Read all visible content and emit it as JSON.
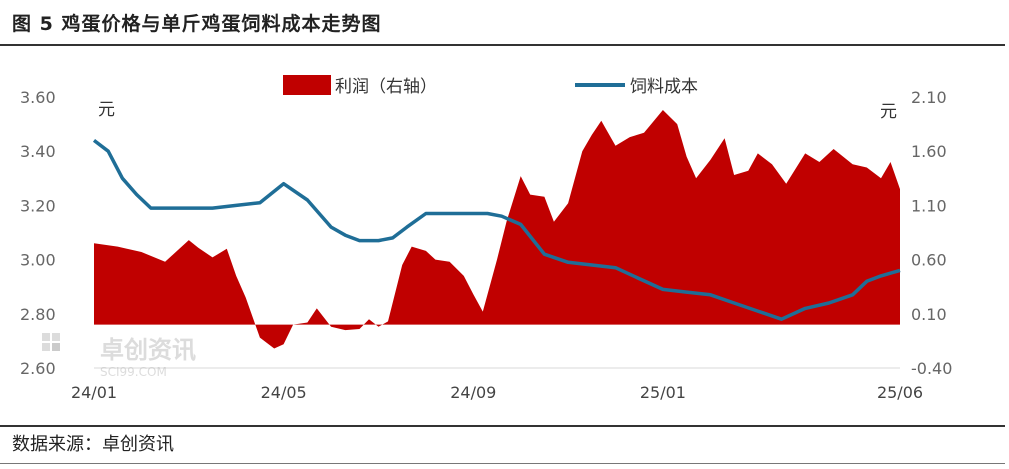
{
  "header": {
    "title": "图 5 鸡蛋价格与单斤鸡蛋饲料成本走势图"
  },
  "footer": {
    "source": "数据来源：卓创资讯"
  },
  "watermark": {
    "brand": "卓创资讯",
    "site": "SCI99.COM"
  },
  "chart_data": {
    "type": "line+area",
    "title": "图 5 鸡蛋价格与单斤鸡蛋饲料成本走势图",
    "left_axis": {
      "unit": "元",
      "ylim": [
        2.6,
        3.6
      ],
      "ticks": [
        "3.60",
        "3.40",
        "3.20",
        "3.00",
        "2.80",
        "2.60"
      ]
    },
    "right_axis": {
      "unit": "元",
      "ylim": [
        -0.4,
        2.1
      ],
      "ticks": [
        "2.10",
        "1.60",
        "1.10",
        "0.60",
        "0.10",
        "-0.40"
      ]
    },
    "x_ticks": [
      "24/01",
      "24/05",
      "24/09",
      "25/01",
      "25/06"
    ],
    "legend": {
      "position": "top-center",
      "entries": [
        {
          "name": "利润（右轴）",
          "color": "#c00000",
          "kind": "area"
        },
        {
          "name": "饲料成本",
          "color": "#1f6e97",
          "kind": "line"
        }
      ]
    },
    "series": [
      {
        "name": "利润（右轴）",
        "axis": "right",
        "color": "#c00000",
        "x": [
          0,
          0.5,
          1,
          1.5,
          2,
          2.2,
          2.5,
          2.8,
          3,
          3.2,
          3.5,
          3.8,
          4,
          4.2,
          4.5,
          4.7,
          5,
          5.3,
          5.6,
          5.8,
          6,
          6.2,
          6.5,
          6.7,
          7,
          7.2,
          7.5,
          7.8,
          8,
          8.2,
          8.5,
          8.7,
          9,
          9.2,
          9.5,
          9.7,
          10,
          10.3,
          10.5,
          10.7,
          11,
          11.3,
          11.6,
          12,
          12.3,
          12.5,
          12.7,
          13,
          13.3,
          13.5,
          13.8,
          14,
          14.3,
          14.6,
          15,
          15.3,
          15.6,
          16,
          16.3,
          16.6,
          16.8,
          17
        ],
        "values": [
          0.75,
          0.72,
          0.67,
          0.58,
          0.78,
          0.71,
          0.62,
          0.7,
          0.45,
          0.25,
          -0.12,
          -0.22,
          -0.18,
          0.0,
          0.02,
          0.15,
          -0.02,
          -0.05,
          -0.04,
          0.05,
          -0.02,
          0.03,
          0.55,
          0.72,
          0.68,
          0.6,
          0.58,
          0.45,
          0.28,
          0.12,
          0.6,
          0.95,
          1.37,
          1.2,
          1.18,
          0.95,
          1.12,
          1.6,
          1.75,
          1.88,
          1.65,
          1.73,
          1.77,
          1.98,
          1.85,
          1.55,
          1.35,
          1.52,
          1.72,
          1.38,
          1.42,
          1.58,
          1.48,
          1.3,
          1.58,
          1.5,
          1.62,
          1.48,
          1.45,
          1.35,
          1.5,
          1.25
        ]
      },
      {
        "name": "饲料成本",
        "axis": "left",
        "color": "#1f6e97",
        "x": [
          0,
          0.3,
          0.6,
          0.9,
          1.2,
          1.5,
          2,
          2.5,
          3,
          3.5,
          4,
          4.5,
          5,
          5.3,
          5.6,
          6,
          6.3,
          6.6,
          7,
          7.3,
          7.6,
          8,
          8.3,
          8.6,
          9,
          9.5,
          10,
          10.5,
          11,
          11.5,
          12,
          12.5,
          13,
          13.5,
          14,
          14.5,
          15,
          15.5,
          16,
          16.3,
          16.6,
          17
        ],
        "values": [
          3.44,
          3.4,
          3.3,
          3.24,
          3.19,
          3.19,
          3.19,
          3.19,
          3.2,
          3.21,
          3.28,
          3.22,
          3.12,
          3.09,
          3.07,
          3.07,
          3.08,
          3.12,
          3.17,
          3.17,
          3.17,
          3.17,
          3.17,
          3.16,
          3.13,
          3.02,
          2.99,
          2.98,
          2.97,
          2.93,
          2.89,
          2.88,
          2.87,
          2.84,
          2.81,
          2.78,
          2.82,
          2.84,
          2.87,
          2.92,
          2.94,
          2.96
        ]
      }
    ]
  }
}
